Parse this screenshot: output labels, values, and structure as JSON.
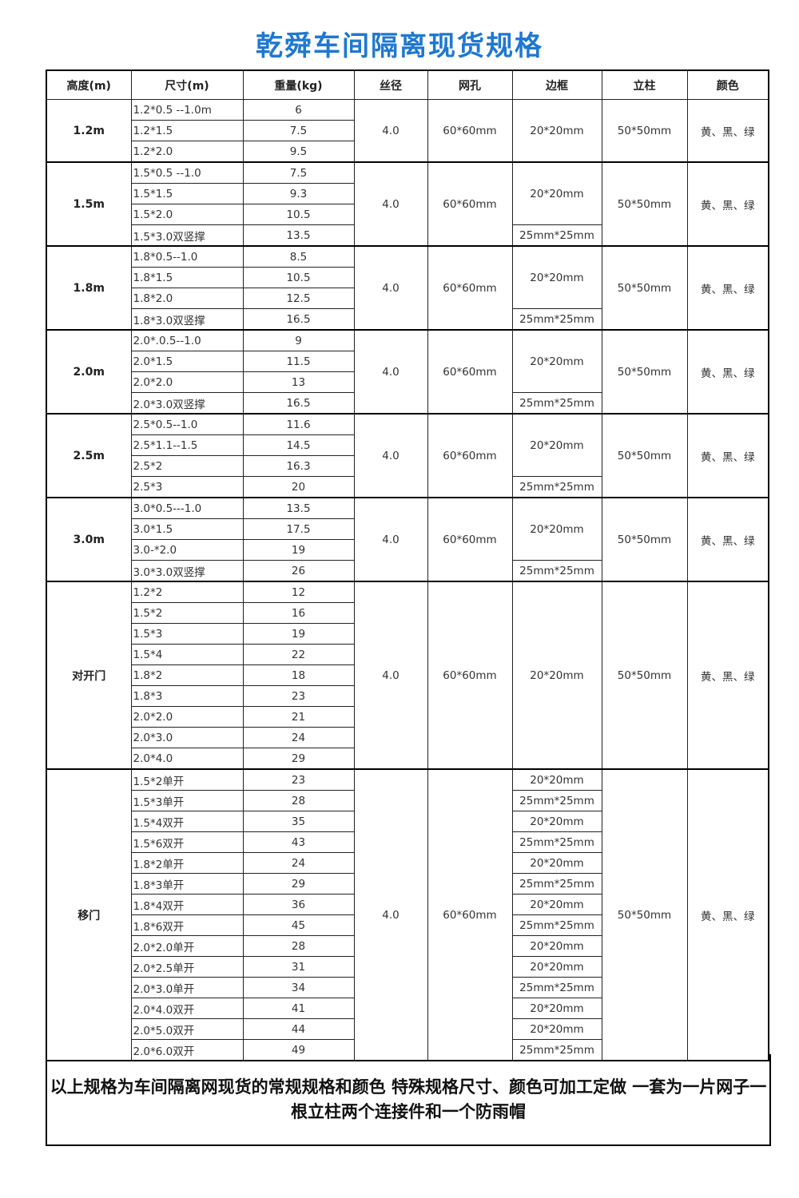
{
  "title": "乾舜车间隔离现货规格",
  "headers": [
    "高度(m)",
    "尺寸(m)",
    "重量(kg)",
    "丝径",
    "网孔",
    "边框",
    "立柱",
    "颜色"
  ],
  "groups": [
    {
      "height": "1.2m",
      "wire": "4.0",
      "mesh": "60*60mm",
      "post": "50*50mm",
      "color": "黄、黑、绿",
      "rows": [
        {
          "size": "1.2*0.5 --1.0m",
          "weight": "6"
        },
        {
          "size": "1.2*1.5",
          "weight": "7.5"
        },
        {
          "size": "1.2*2.0",
          "weight": "9.5"
        }
      ],
      "frames": [
        {
          "text": "20*20mm",
          "span": 3
        }
      ]
    },
    {
      "height": "1.5m",
      "wire": "4.0",
      "mesh": "60*60mm",
      "post": "50*50mm",
      "color": "黄、黑、绿",
      "rows": [
        {
          "size": "1.5*0.5 --1.0",
          "weight": "7.5"
        },
        {
          "size": "1.5*1.5",
          "weight": "9.3"
        },
        {
          "size": "1.5*2.0",
          "weight": "10.5"
        },
        {
          "size": "1.5*3.0双竖撑",
          "weight": "13.5"
        }
      ],
      "frames": [
        {
          "text": "20*20mm",
          "span": 3
        },
        {
          "text": "25mm*25mm",
          "span": 1
        }
      ]
    },
    {
      "height": "1.8m",
      "wire": "4.0",
      "mesh": "60*60mm",
      "post": "50*50mm",
      "color": "黄、黑、绿",
      "rows": [
        {
          "size": "1.8*0.5--1.0",
          "weight": "8.5"
        },
        {
          "size": "1.8*1.5",
          "weight": "10.5"
        },
        {
          "size": "1.8*2.0",
          "weight": "12.5"
        },
        {
          "size": "1.8*3.0双竖撑",
          "weight": "16.5"
        }
      ],
      "frames": [
        {
          "text": "20*20mm",
          "span": 3
        },
        {
          "text": "25mm*25mm",
          "span": 1
        }
      ]
    },
    {
      "height": "2.0m",
      "wire": "4.0",
      "mesh": "60*60mm",
      "post": "50*50mm",
      "color": "黄、黑、绿",
      "rows": [
        {
          "size": "2.0*.0.5--1.0",
          "weight": "9"
        },
        {
          "size": "2.0*1.5",
          "weight": "11.5"
        },
        {
          "size": "2.0*2.0",
          "weight": "13"
        },
        {
          "size": "2.0*3.0双竖撑",
          "weight": "16.5"
        }
      ],
      "frames": [
        {
          "text": "20*20mm",
          "span": 3
        },
        {
          "text": "25mm*25mm",
          "span": 1
        }
      ]
    },
    {
      "height": "2.5m",
      "wire": "4.0",
      "mesh": "60*60mm",
      "post": "50*50mm",
      "color": "黄、黑、绿",
      "rows": [
        {
          "size": "2.5*0.5--1.0",
          "weight": "11.6"
        },
        {
          "size": "2.5*1.1--1.5",
          "weight": "14.5"
        },
        {
          "size": "2.5*2",
          "weight": "16.3"
        },
        {
          "size": "2.5*3",
          "weight": "20"
        }
      ],
      "frames": [
        {
          "text": "20*20mm",
          "span": 3
        },
        {
          "text": "25mm*25mm",
          "span": 1
        }
      ]
    },
    {
      "height": "3.0m",
      "wire": "4.0",
      "mesh": "60*60mm",
      "post": "50*50mm",
      "color": "黄、黑、绿",
      "rows": [
        {
          "size": "3.0*0.5---1.0",
          "weight": "13.5"
        },
        {
          "size": "3.0*1.5",
          "weight": "17.5"
        },
        {
          "size": "3.0-*2.0",
          "weight": "19"
        },
        {
          "size": "3.0*3.0双竖撑",
          "weight": "26"
        }
      ],
      "frames": [
        {
          "text": "20*20mm",
          "span": 3
        },
        {
          "text": "25mm*25mm",
          "span": 1
        }
      ]
    },
    {
      "height": "对开门",
      "wire": "4.0",
      "mesh": "60*60mm",
      "post": "50*50mm",
      "color": "黄、黑、绿",
      "rows": [
        {
          "size": "1.2*2",
          "weight": "12"
        },
        {
          "size": "1.5*2",
          "weight": "16"
        },
        {
          "size": "1.5*3",
          "weight": "19"
        },
        {
          "size": "1.5*4",
          "weight": "22"
        },
        {
          "size": "1.8*2",
          "weight": "18"
        },
        {
          "size": "1.8*3",
          "weight": "23"
        },
        {
          "size": "2.0*2.0",
          "weight": "21"
        },
        {
          "size": "2.0*3.0",
          "weight": "24"
        },
        {
          "size": "2.0*4.0",
          "weight": "29"
        }
      ],
      "frames": [
        {
          "text": "20*20mm",
          "span": 9
        }
      ]
    },
    {
      "height": "移门",
      "wire": "4.0",
      "mesh": "60*60mm",
      "post": "50*50mm",
      "color": "黄、黑、绿",
      "rows": [
        {
          "size": "1.5*2单开",
          "weight": "23"
        },
        {
          "size": "1.5*3单开",
          "weight": "28"
        },
        {
          "size": "1.5*4双开",
          "weight": "35"
        },
        {
          "size": "1.5*6双开",
          "weight": "43"
        },
        {
          "size": "1.8*2单开",
          "weight": "24"
        },
        {
          "size": "1.8*3单开",
          "weight": "29"
        },
        {
          "size": "1.8*4双开",
          "weight": "36"
        },
        {
          "size": "1.8*6双开",
          "weight": "45"
        },
        {
          "size": "2.0*2.0单开",
          "weight": "28"
        },
        {
          "size": "2.0*2.5单开",
          "weight": "31"
        },
        {
          "size": "2.0*3.0单开",
          "weight": "34"
        },
        {
          "size": "2.0*4.0双开",
          "weight": "41"
        },
        {
          "size": "2.0*5.0双开",
          "weight": "44"
        },
        {
          "size": "2.0*6.0双开",
          "weight": "49"
        }
      ],
      "frames": [
        {
          "text": "20*20mm",
          "span": 1
        },
        {
          "text": "25mm*25mm",
          "span": 1
        },
        {
          "text": "20*20mm",
          "span": 1
        },
        {
          "text": "25mm*25mm",
          "span": 1
        },
        {
          "text": "20*20mm",
          "span": 1
        },
        {
          "text": "25mm*25mm",
          "span": 1
        },
        {
          "text": "20*20mm",
          "span": 1
        },
        {
          "text": "25mm*25mm",
          "span": 1
        },
        {
          "text": "20*20mm",
          "span": 1
        },
        {
          "text": "20*20mm",
          "span": 1
        },
        {
          "text": "25mm*25mm",
          "span": 1
        },
        {
          "text": "20*20mm",
          "span": 1
        },
        {
          "text": "20*20mm",
          "span": 1
        },
        {
          "text": "25mm*25mm",
          "span": 1
        }
      ]
    }
  ],
  "footer": "以上规格为车间隔离网现货的常规规格和颜色  特殊规格尺寸、颜色可加工定做 一套为一片网子一根立柱两个连接件和一个防雨帽",
  "colors": {
    "title": "#1f78d1",
    "border": "#000000"
  }
}
